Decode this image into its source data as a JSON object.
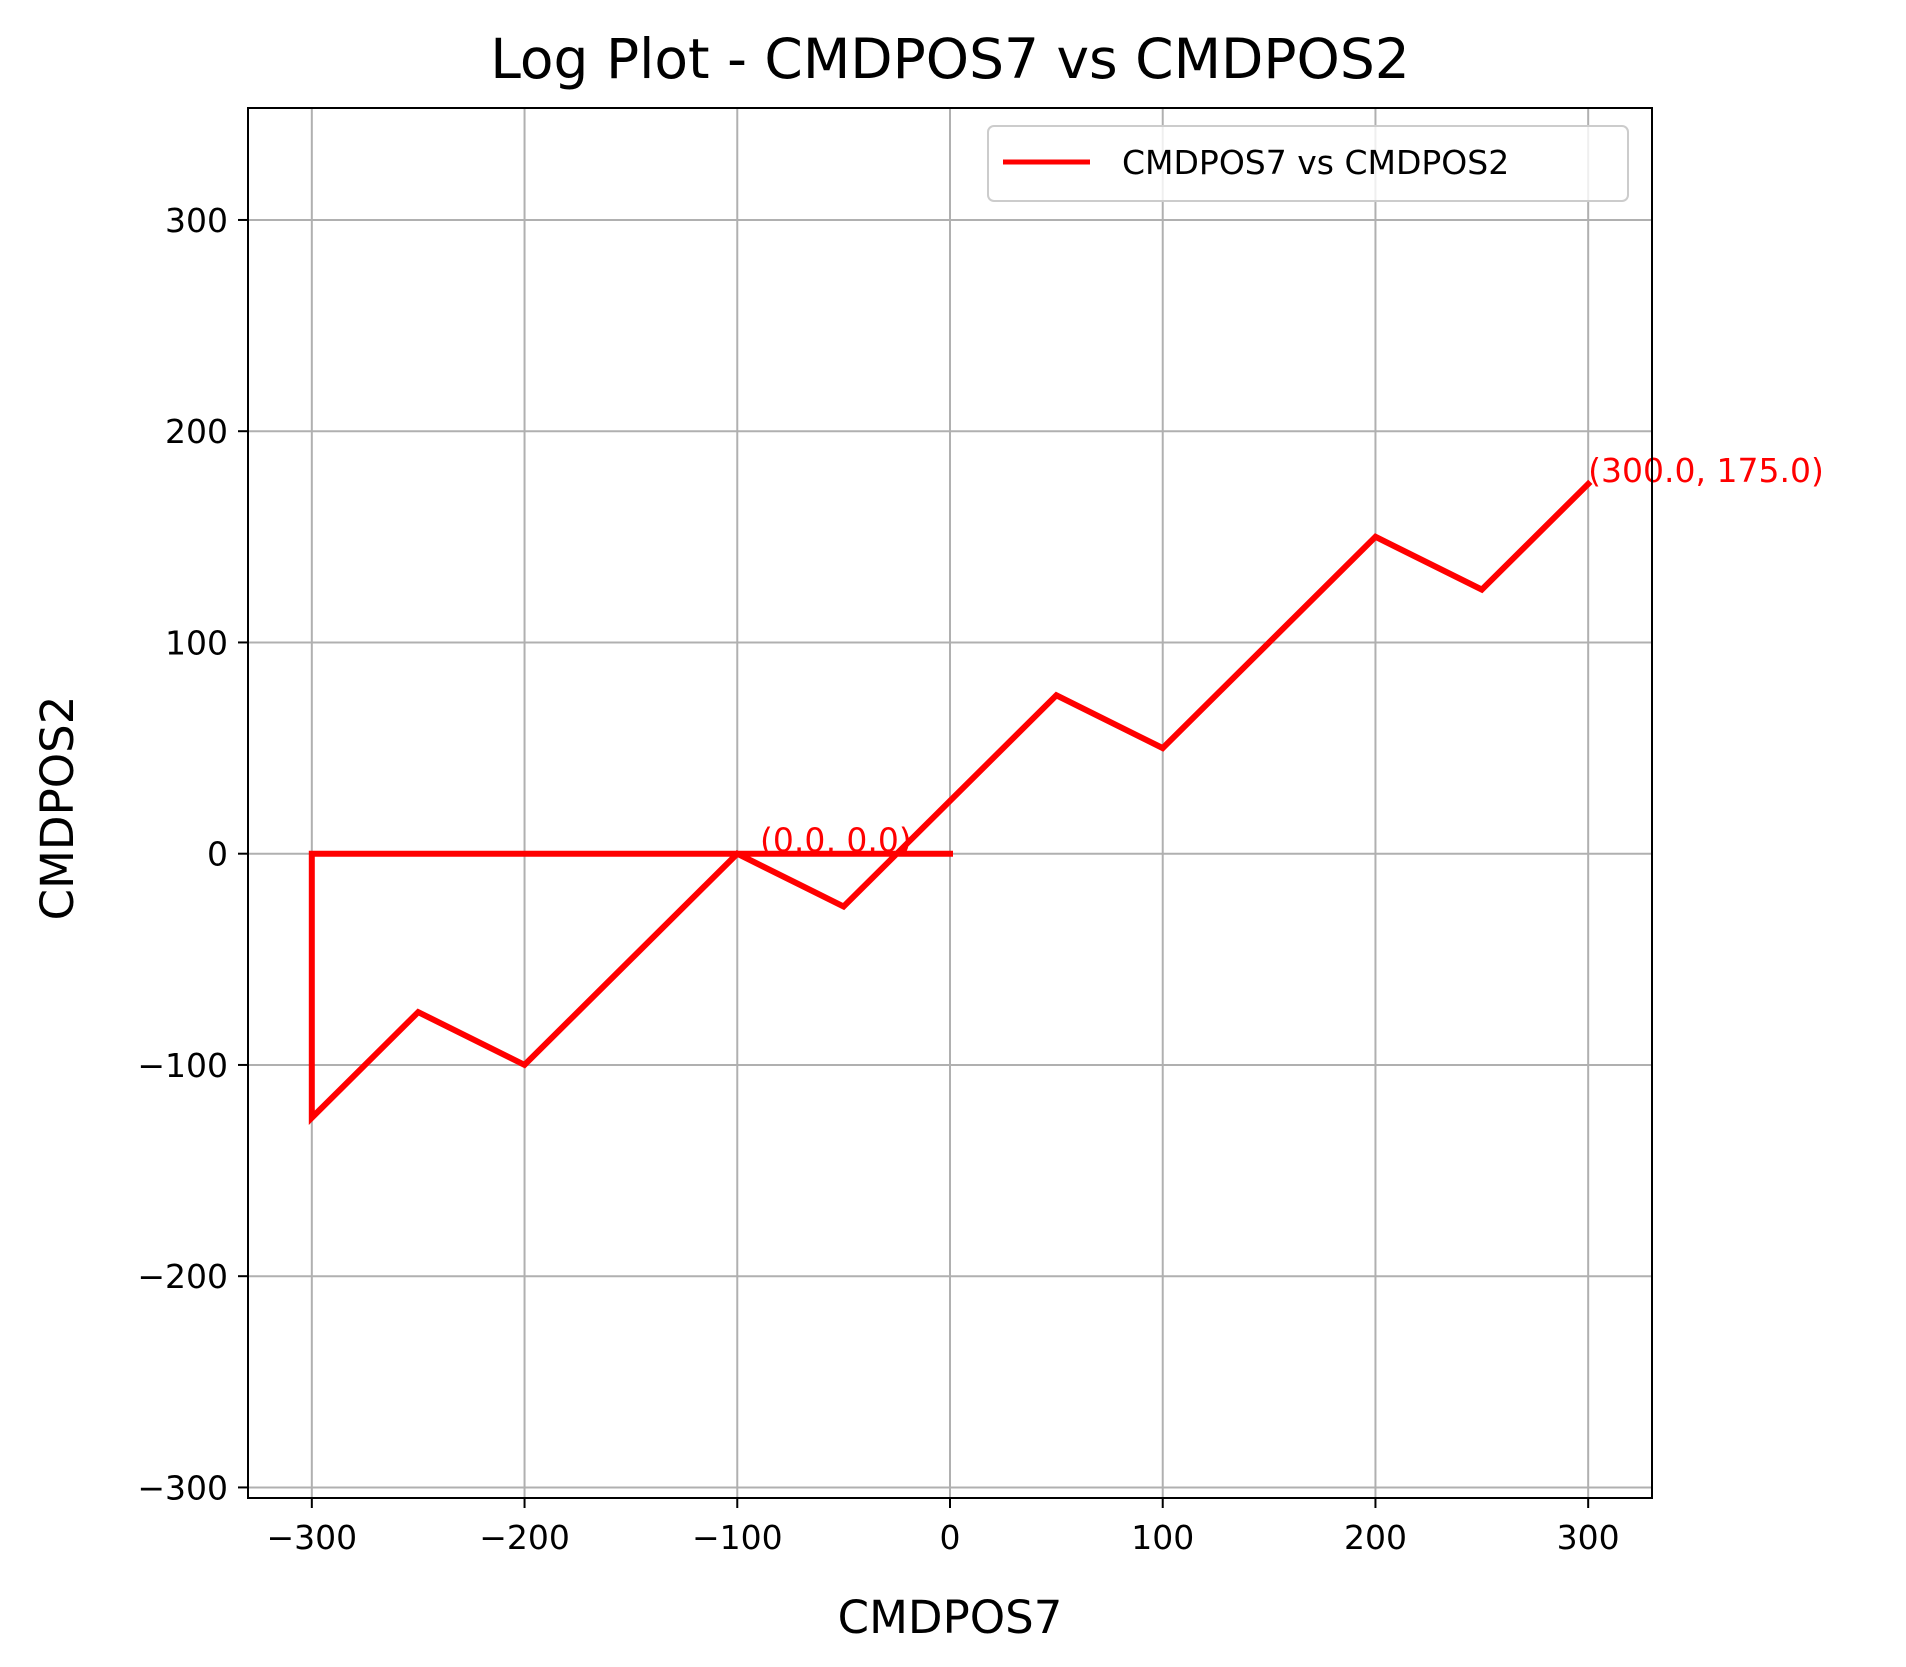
{
  "chart_data": {
    "type": "line",
    "title": "Log Plot - CMDPOS7 vs CMDPOS2",
    "xlabel": "CMDPOS7",
    "ylabel": "CMDPOS2",
    "xlim": [
      -330,
      330
    ],
    "ylim": [
      -305,
      353
    ],
    "xticks": [
      -300,
      -200,
      -100,
      0,
      100,
      200,
      300
    ],
    "yticks": [
      -300,
      -200,
      -100,
      0,
      100,
      200,
      300
    ],
    "xtick_labels": [
      "−300",
      "−200",
      "−100",
      "0",
      "100",
      "200",
      "300"
    ],
    "ytick_labels": [
      "−300",
      "−200",
      "−100",
      "0",
      "100",
      "200",
      "300"
    ],
    "grid": true,
    "legend_position": "top-right",
    "series": [
      {
        "name": "CMDPOS7 vs CMDPOS2",
        "color": "#ff0000",
        "x": [
          0,
          -300,
          -300,
          -250,
          -200,
          -100,
          -50,
          0,
          50,
          100,
          150,
          200,
          250,
          300
        ],
        "y": [
          0,
          0,
          -125,
          -75,
          -100,
          0,
          -25,
          25,
          75,
          50,
          100,
          150,
          125,
          175
        ]
      }
    ],
    "annotations": [
      {
        "text": "(0.0, 0.0)",
        "x": 0,
        "y": 0,
        "color": "#ff0000"
      },
      {
        "text": "(300.0, 175.0)",
        "x": 300,
        "y": 175,
        "color": "#ff0000"
      }
    ]
  }
}
